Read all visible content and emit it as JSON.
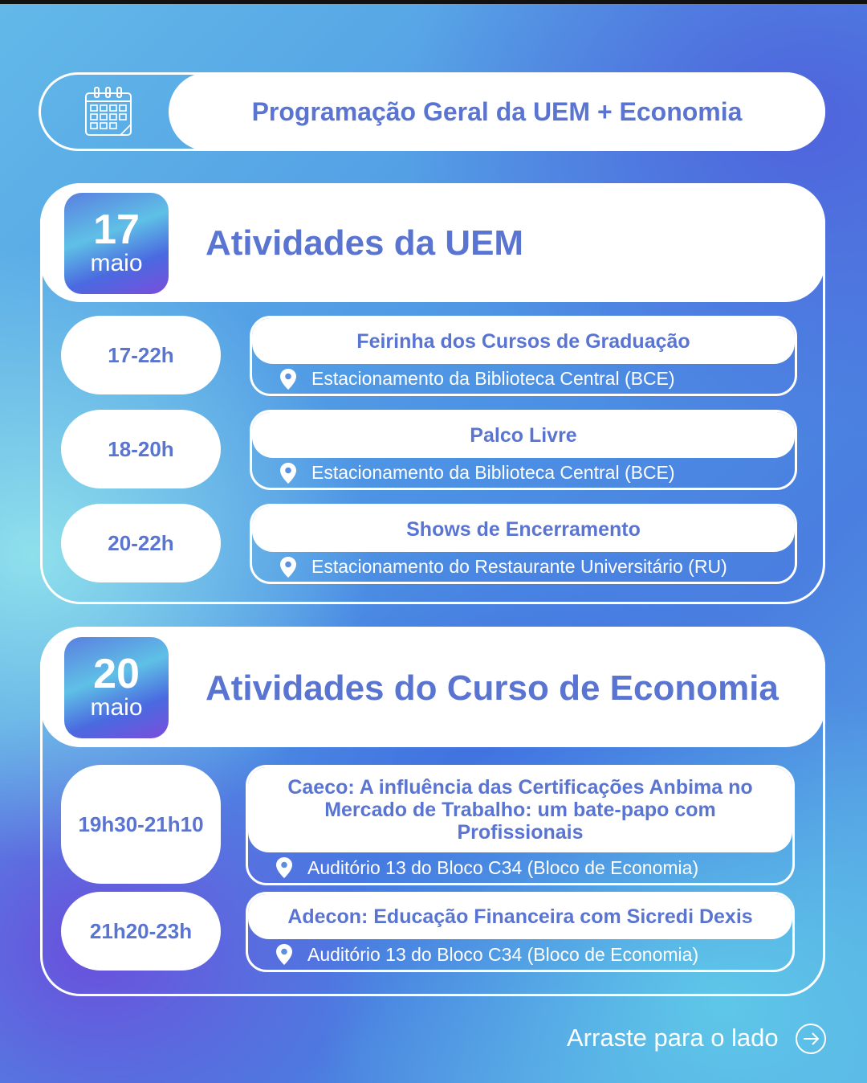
{
  "header": {
    "title": "Programação Geral da UEM + Economia",
    "icon": "calendar-icon"
  },
  "sections": [
    {
      "day": "17",
      "month": "maio",
      "title": "Atividades da UEM",
      "events": [
        {
          "time": "17-22h",
          "title": "Feirinha dos Cursos de Graduação",
          "location": "Estacionamento da Biblioteca Central (BCE)"
        },
        {
          "time": "18-20h",
          "title": "Palco Livre",
          "location": "Estacionamento da Biblioteca Central (BCE)"
        },
        {
          "time": "20-22h",
          "title": "Shows de Encerramento",
          "location": "Estacionamento do Restaurante Universitário (RU)"
        }
      ]
    },
    {
      "day": "20",
      "month": "maio",
      "title": "Atividades do Curso de Economia",
      "events": [
        {
          "time": "19h30-21h10",
          "title": "Caeco: A influência das Certificações Anbima no Mercado de Trabalho: um bate-papo com Profissionais",
          "location": "Auditório 13 do Bloco C34 (Bloco de Economia)"
        },
        {
          "time": "21h20-23h",
          "title": "Adecon: Educação Financeira com Sicredi Dexis",
          "location": "Auditório 13 do Bloco C34 (Bloco de Economia)"
        }
      ]
    }
  ],
  "footer": {
    "text": "Arraste para o lado",
    "icon": "arrow-right-circle-icon"
  },
  "colors": {
    "text_accent": "#5a74d2",
    "white": "#ffffff"
  }
}
